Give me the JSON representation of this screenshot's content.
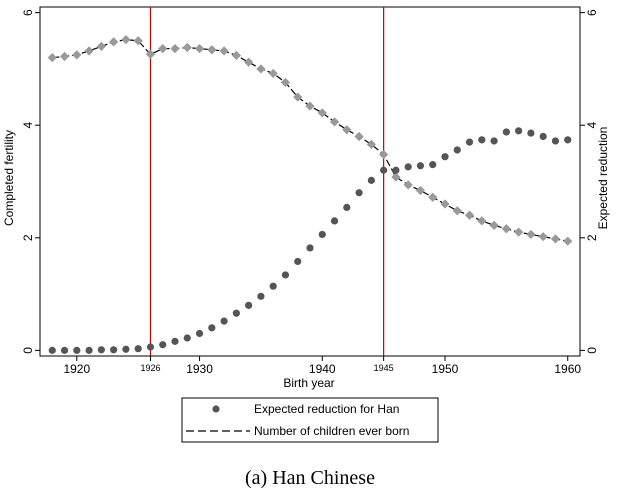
{
  "chart_data": {
    "type": "scatter",
    "caption": "(a) Han Chinese",
    "xlabel": "Birth year",
    "ylabel_left": "Completed fertility",
    "ylabel_right": "Expected reduction",
    "xlim": [
      1917,
      1961
    ],
    "ylim": [
      -0.1,
      6.1
    ],
    "x_ticks": [
      {
        "value": 1920,
        "label": "1920",
        "small": false
      },
      {
        "value": 1926,
        "label": "1926",
        "small": true
      },
      {
        "value": 1930,
        "label": "1930",
        "small": false
      },
      {
        "value": 1940,
        "label": "1940",
        "small": false
      },
      {
        "value": 1945,
        "label": "1945",
        "small": true
      },
      {
        "value": 1950,
        "label": "1950",
        "small": false
      },
      {
        "value": 1960,
        "label": "1960",
        "small": false
      }
    ],
    "y_ticks": [
      {
        "value": 0,
        "label": "0"
      },
      {
        "value": 2,
        "label": "2"
      },
      {
        "value": 4,
        "label": "4"
      },
      {
        "value": 6,
        "label": "6"
      }
    ],
    "vertical_lines": [
      1926,
      1945
    ],
    "legend_position": "bottom",
    "series": [
      {
        "name": "Expected reduction for Han",
        "marker": "circle",
        "color": "#555555",
        "x": [
          1918,
          1919,
          1920,
          1921,
          1922,
          1923,
          1924,
          1925,
          1926,
          1927,
          1928,
          1929,
          1930,
          1931,
          1932,
          1933,
          1934,
          1935,
          1936,
          1937,
          1938,
          1939,
          1940,
          1941,
          1942,
          1943,
          1944,
          1945,
          1946,
          1947,
          1948,
          1949,
          1950,
          1951,
          1952,
          1953,
          1954,
          1955,
          1956,
          1957,
          1958,
          1959,
          1960
        ],
        "y": [
          0.0,
          0.0,
          0.0,
          0.0,
          0.01,
          0.01,
          0.02,
          0.03,
          0.06,
          0.1,
          0.16,
          0.22,
          0.3,
          0.4,
          0.52,
          0.66,
          0.8,
          0.96,
          1.14,
          1.34,
          1.58,
          1.82,
          2.06,
          2.3,
          2.54,
          2.8,
          3.02,
          3.2,
          3.2,
          3.26,
          3.28,
          3.3,
          3.44,
          3.56,
          3.7,
          3.74,
          3.72,
          3.88,
          3.9,
          3.86,
          3.8,
          3.72,
          3.74
        ]
      },
      {
        "name": "Number of children ever born",
        "marker": "diamond",
        "color": "#999999",
        "line_color": "#000000",
        "line_style": "dashed",
        "x": [
          1918,
          1919,
          1920,
          1921,
          1922,
          1923,
          1924,
          1925,
          1926,
          1927,
          1928,
          1929,
          1930,
          1931,
          1932,
          1933,
          1934,
          1935,
          1936,
          1937,
          1938,
          1939,
          1940,
          1941,
          1942,
          1943,
          1944,
          1945,
          1946,
          1947,
          1948,
          1949,
          1950,
          1951,
          1952,
          1953,
          1954,
          1955,
          1956,
          1957,
          1958,
          1959,
          1960
        ],
        "y": [
          5.2,
          5.22,
          5.25,
          5.32,
          5.4,
          5.48,
          5.52,
          5.5,
          5.26,
          5.36,
          5.36,
          5.38,
          5.36,
          5.34,
          5.32,
          5.24,
          5.12,
          5.0,
          4.92,
          4.76,
          4.5,
          4.34,
          4.22,
          4.06,
          3.92,
          3.8,
          3.66,
          3.48,
          3.08,
          2.94,
          2.84,
          2.72,
          2.6,
          2.48,
          2.4,
          2.3,
          2.22,
          2.16,
          2.1,
          2.06,
          2.02,
          1.98,
          1.94
        ]
      }
    ]
  }
}
